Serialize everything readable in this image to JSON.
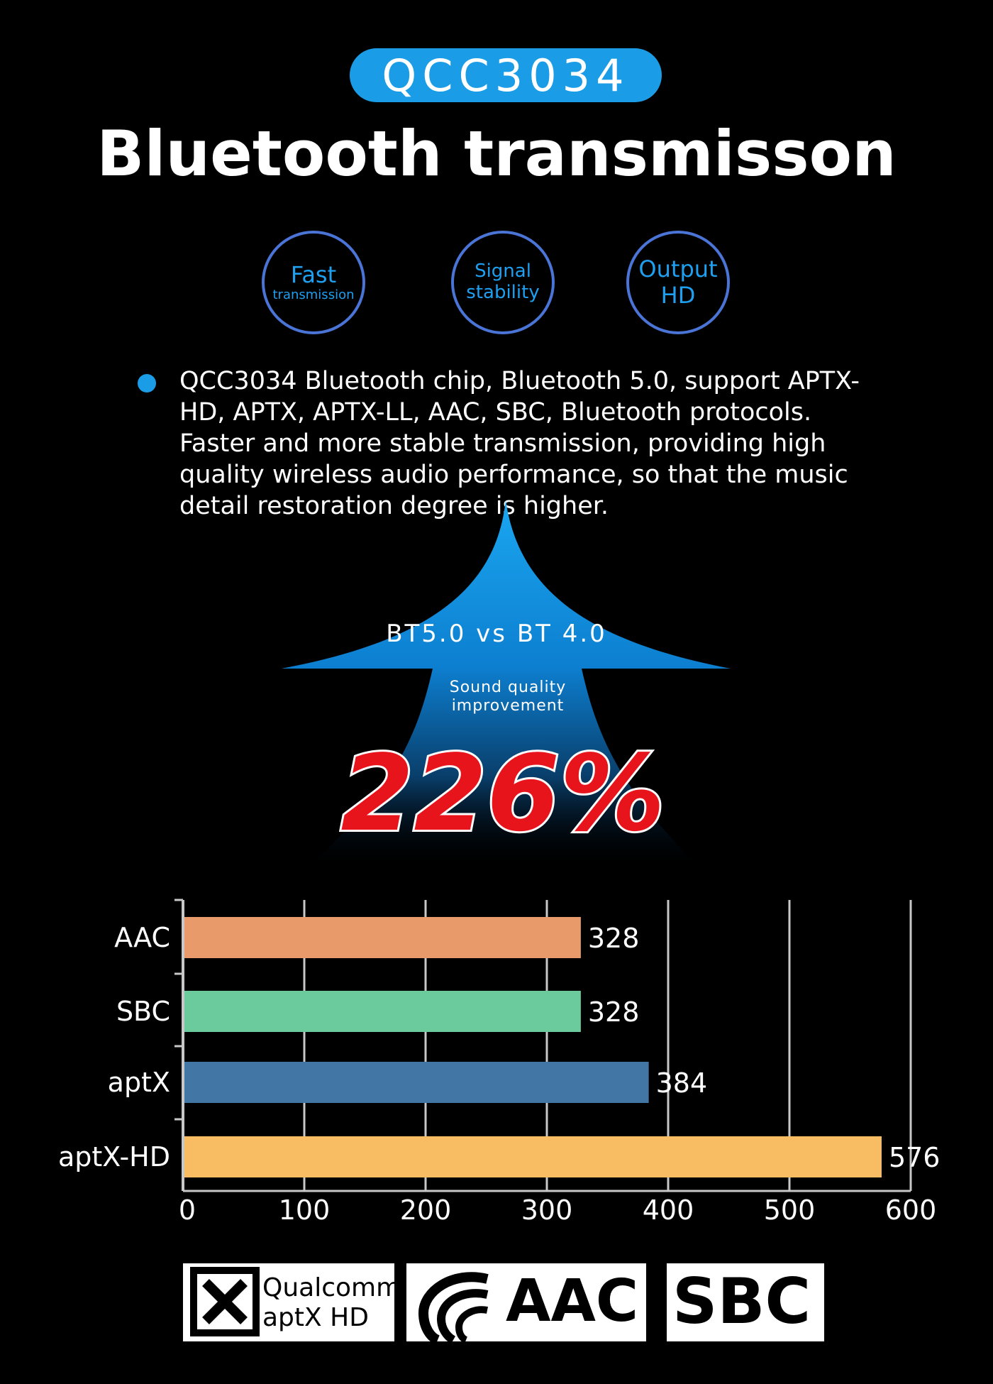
{
  "header": {
    "chip_label": "QCC3034",
    "title": "Bluetooth transmisson"
  },
  "features": [
    {
      "line1": "Fast",
      "line2": "transmission"
    },
    {
      "line1": "Signal",
      "line2": "stability"
    },
    {
      "line1": "Output",
      "line2": "HD"
    }
  ],
  "description": "QCC3034 Bluetooth chip, Bluetooth 5.0, support APTX-HD, APTX, APTX-LL, AAC, SBC, Bluetooth protocols. Faster and more stable transmission, providing high quality wireless audio performance, so that the music detail restoration degree is higher.",
  "arrow": {
    "compare_text": "BT5.0 vs BT 4.0",
    "sound_quality_line1": "Sound quality",
    "sound_quality_line2": "improvement",
    "percentage": "226%"
  },
  "colors": {
    "accent": "#1a9de6",
    "circle_border": "#4a74d6",
    "percent_red": "#e8141c"
  },
  "chart_data": {
    "type": "bar",
    "orientation": "horizontal",
    "categories": [
      "AAC",
      "SBC",
      "aptX",
      "aptX-HD"
    ],
    "values": [
      328,
      328,
      384,
      576
    ],
    "value_labels": [
      "328",
      "328",
      "384",
      "576"
    ],
    "bar_colors": [
      "#e99a6a",
      "#6ccb9c",
      "#4176a5",
      "#f8bd62"
    ],
    "xlim": [
      0,
      600
    ],
    "xticks": [
      0,
      100,
      200,
      300,
      400,
      500,
      600
    ],
    "xtick_labels": [
      "0",
      "100",
      "200",
      "300",
      "400",
      "500",
      "600"
    ],
    "grid": true,
    "title": "",
    "xlabel": "",
    "ylabel": ""
  },
  "logos": [
    {
      "name": "qualcomm-aptx-hd-logo",
      "line1": "Qualcomm",
      "line2": "aptX HD"
    },
    {
      "name": "aac-logo",
      "text": "AAC"
    },
    {
      "name": "sbc-logo",
      "text": "SBC"
    }
  ]
}
